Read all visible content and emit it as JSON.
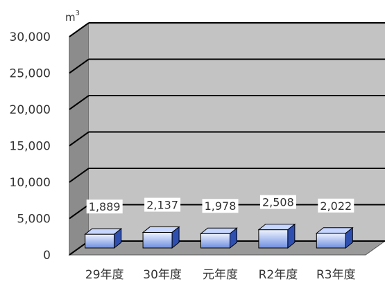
{
  "chart_data": {
    "type": "bar",
    "unit": "m",
    "unit_superscript": "3",
    "categories": [
      "29年度",
      "30年度",
      "元年度",
      "R2年度",
      "R3年度"
    ],
    "values": [
      1889,
      2137,
      1978,
      2508,
      2022
    ],
    "value_labels": [
      "1,889",
      "2,137",
      "1,978",
      "2,508",
      "2,022"
    ],
    "ylim": [
      0,
      30000
    ],
    "yticks": [
      0,
      5000,
      10000,
      15000,
      20000,
      25000,
      30000
    ],
    "ytick_labels": [
      "0",
      "5,000",
      "10,000",
      "15,000",
      "20,000",
      "25,000",
      "30,000"
    ],
    "grid": true,
    "legend": "none",
    "colors": {
      "back_wall": "#c3c3c3",
      "side_wall": "#8c8c8c",
      "floor": "#9a9a9a",
      "grid_line": "#000000",
      "bar_front_top": "#eef3ff",
      "bar_front_bottom": "#6f8fe0",
      "bar_top": "#c6d6ff",
      "bar_side": "#2f4fb0",
      "label_bg": "#ffffff",
      "text": "#333333"
    }
  }
}
